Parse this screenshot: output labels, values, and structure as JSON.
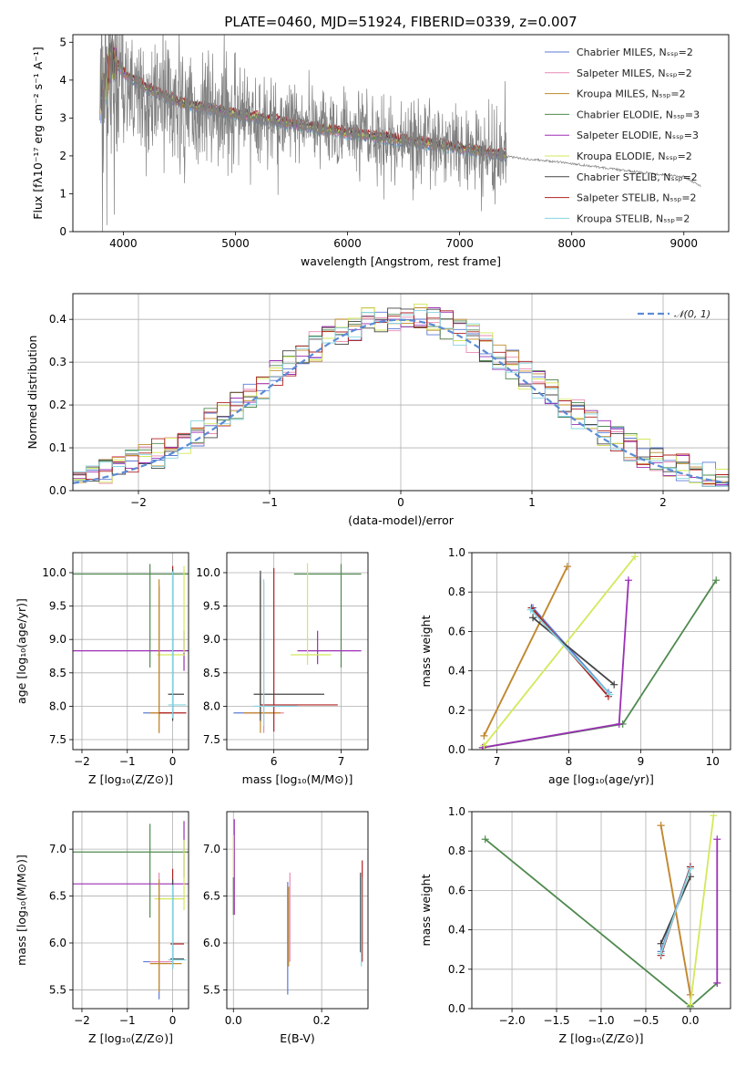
{
  "colors": {
    "chab_miles": "#5b7bd5",
    "salp_miles": "#e889b3",
    "krou_miles": "#c08a2a",
    "chab_elodie": "#4f8a4f",
    "salp_elodie": "#9b2fb5",
    "krou_elodie": "#d3e85a",
    "chab_stelib": "#444444",
    "salp_stelib": "#b02020",
    "krou_stelib": "#86d4e0",
    "spectrum": "#808080",
    "normal": "#5b8bd5",
    "orange": "#f07830",
    "grid": "#b0b0b0"
  },
  "chart_data": [
    {
      "id": "spectrum",
      "type": "line",
      "title": "PLATE=0460, MJD=51924, FIBERID=0339, z=0.007",
      "xlabel": "wavelength [Angstrom, rest frame]",
      "ylabel": "Flux [fλ10⁻¹⁷ erg cm⁻² s⁻¹ A⁻¹]",
      "xlim": [
        3550,
        9400
      ],
      "ylim": [
        0,
        5.2
      ],
      "xticks": [
        4000,
        5000,
        6000,
        7000,
        8000,
        9000
      ],
      "yticks": [
        0,
        1,
        2,
        3,
        4,
        5
      ],
      "grid": false,
      "legend_position": "top-right",
      "legend": [
        "Chabrier MILES, N_SSP=2",
        "Salpeter MILES, N_SSP=2",
        "Kroupa MILES, N_SSP=2",
        "Chabrier ELODIE, N_SSP=3",
        "Salpeter ELODIE, N_SSP=3",
        "Kroupa ELODIE, N_SSP=2",
        "Chabrier STELIB, N_SSP=2",
        "Salpeter STELIB, N_SSP=2",
        "Kroupa STELIB, N_SSP=2"
      ],
      "data_trend": {
        "x": [
          3800,
          3900,
          4000,
          4200,
          4500,
          5000,
          5500,
          6000,
          6500,
          7000,
          7500,
          8000,
          8500,
          9000,
          9150
        ],
        "y": [
          3.6,
          3.9,
          3.8,
          3.6,
          3.3,
          3.1,
          2.85,
          2.6,
          2.35,
          2.15,
          1.95,
          1.8,
          1.6,
          1.45,
          1.2
        ]
      },
      "model_trend": {
        "x": [
          3800,
          3900,
          4000,
          4200,
          4500,
          5000,
          5500,
          6000,
          6500,
          7000,
          7420
        ],
        "y": [
          3.5,
          4.6,
          4.2,
          3.8,
          3.4,
          3.1,
          2.85,
          2.6,
          2.4,
          2.2,
          2.0
        ]
      }
    },
    {
      "id": "residuals",
      "type": "histogram",
      "xlabel": "(data-model)/error",
      "ylabel": "Normed distribution",
      "xlim": [
        -2.5,
        2.5
      ],
      "ylim": [
        0,
        0.46
      ],
      "xticks": [
        -2,
        -1,
        0,
        1,
        2
      ],
      "yticks": [
        0.0,
        0.1,
        0.2,
        0.3,
        0.4
      ],
      "grid": true,
      "legend_position": "top-right",
      "legend": [
        "𝒩(0, 1)"
      ],
      "bin_width": 0.1
    },
    {
      "id": "age_vs_Z",
      "type": "errorbar",
      "xlabel": "Z [log₁₀(Z/Z⊙)]",
      "ylabel": "age  [log₁₀(age/yr)]",
      "xlim": [
        -2.2,
        0.35
      ],
      "ylim": [
        7.35,
        10.3
      ],
      "xticks": [
        -2,
        -1,
        0
      ],
      "yticks": [
        7.5,
        8.0,
        8.5,
        9.0,
        9.5,
        10.0
      ],
      "grid": true
    },
    {
      "id": "age_vs_mass",
      "type": "errorbar",
      "xlabel": "mass [log₁₀(M/M⊙)]",
      "ylabel": "",
      "xlim": [
        5.3,
        7.4
      ],
      "ylim": [
        7.35,
        10.3
      ],
      "xticks": [
        6,
        7
      ],
      "yticks": [
        7.5,
        8.0,
        8.5,
        9.0,
        9.5,
        10.0
      ],
      "grid": true
    },
    {
      "id": "weight_vs_age",
      "type": "line",
      "xlabel": "age  [log₁₀(age/yr)]",
      "ylabel": "mass weight",
      "xlim": [
        6.65,
        10.25
      ],
      "ylim": [
        0,
        1
      ],
      "xticks": [
        7,
        8,
        9,
        10
      ],
      "yticks": [
        0.0,
        0.2,
        0.4,
        0.6,
        0.8,
        1.0
      ],
      "grid": true,
      "series": [
        {
          "key": "chab_miles",
          "x": [
            7.5,
            8.55
          ],
          "y": [
            0.72,
            0.29
          ]
        },
        {
          "key": "salp_miles",
          "x": [
            6.82,
            7.98
          ],
          "y": [
            0.07,
            0.93
          ]
        },
        {
          "key": "krou_miles",
          "x": [
            6.82,
            7.98
          ],
          "y": [
            0.07,
            0.93
          ]
        },
        {
          "key": "chab_elodie",
          "x": [
            6.8,
            8.75,
            10.05
          ],
          "y": [
            0.01,
            0.13,
            0.86
          ]
        },
        {
          "key": "salp_elodie",
          "x": [
            6.8,
            8.7,
            8.83
          ],
          "y": [
            0.01,
            0.13,
            0.86
          ]
        },
        {
          "key": "krou_elodie",
          "x": [
            6.82,
            8.92
          ],
          "y": [
            0.02,
            0.98
          ]
        },
        {
          "key": "chab_stelib",
          "x": [
            7.5,
            8.63
          ],
          "y": [
            0.67,
            0.33
          ]
        },
        {
          "key": "salp_stelib",
          "x": [
            7.48,
            8.55
          ],
          "y": [
            0.72,
            0.27
          ]
        },
        {
          "key": "krou_stelib",
          "x": [
            7.47,
            8.57
          ],
          "y": [
            0.71,
            0.28
          ]
        }
      ]
    },
    {
      "id": "mass_vs_Z",
      "type": "errorbar",
      "xlabel": "Z [log₁₀(Z/Z⊙)]",
      "ylabel": "mass [log₁₀(M/M⊙)]",
      "xlim": [
        -2.2,
        0.35
      ],
      "ylim": [
        5.3,
        7.4
      ],
      "xticks": [
        -2,
        -1,
        0
      ],
      "yticks": [
        5.5,
        6.0,
        6.5,
        7.0
      ],
      "grid": true
    },
    {
      "id": "mass_vs_ebv",
      "type": "errorbar",
      "xlabel": "E(B-V)",
      "ylabel": "",
      "xlim": [
        -0.015,
        0.305
      ],
      "ylim": [
        5.3,
        7.4
      ],
      "xticks": [
        0.0,
        0.2
      ],
      "yticks": [
        5.5,
        6.0,
        6.5,
        7.0
      ],
      "grid": true
    },
    {
      "id": "weight_vs_Z",
      "type": "line",
      "xlabel": "Z [log₁₀(Z/Z⊙)]",
      "ylabel": "mass weight",
      "xlim": [
        -2.45,
        0.45
      ],
      "ylim": [
        0,
        1
      ],
      "xticks": [
        -2.0,
        -1.5,
        -1.0,
        -0.5,
        0.0
      ],
      "yticks": [
        0.0,
        0.2,
        0.4,
        0.6,
        0.8,
        1.0
      ],
      "grid": true,
      "series": [
        {
          "key": "chab_miles",
          "x": [
            -0.33,
            0.0
          ],
          "y": [
            0.29,
            0.72
          ]
        },
        {
          "key": "salp_miles",
          "x": [
            -0.33,
            0.0
          ],
          "y": [
            0.93,
            0.07
          ]
        },
        {
          "key": "krou_miles",
          "x": [
            -0.33,
            0.0
          ],
          "y": [
            0.93,
            0.07
          ]
        },
        {
          "key": "chab_elodie",
          "x": [
            -2.3,
            0.0,
            0.3
          ],
          "y": [
            0.86,
            0.01,
            0.13
          ]
        },
        {
          "key": "salp_elodie",
          "x": [
            0.3,
            0.3
          ],
          "y": [
            0.13,
            0.86
          ]
        },
        {
          "key": "krou_elodie",
          "x": [
            0.0,
            0.26
          ],
          "y": [
            0.02,
            0.98
          ]
        },
        {
          "key": "chab_stelib",
          "x": [
            -0.33,
            0.0
          ],
          "y": [
            0.33,
            0.67
          ]
        },
        {
          "key": "salp_stelib",
          "x": [
            -0.33,
            0.0
          ],
          "y": [
            0.27,
            0.72
          ]
        },
        {
          "key": "krou_stelib",
          "x": [
            -0.33,
            0.0
          ],
          "y": [
            0.28,
            0.71
          ]
        }
      ]
    }
  ]
}
